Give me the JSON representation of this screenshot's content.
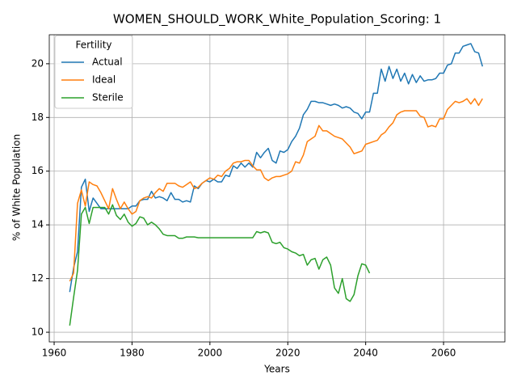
{
  "chart_data": {
    "type": "line",
    "title": "WOMEN_SHOULD_WORK_White_Population_Scoring: 1",
    "x_label": "Years",
    "y_label": "% of White Population",
    "legend_title": "Fertility",
    "legend_position": "upper left",
    "grid": true,
    "xlim": [
      1958.75,
      2075.75
    ],
    "ylim": [
      9.64,
      21.08
    ],
    "xticks": [
      1960,
      1980,
      2000,
      2020,
      2040,
      2060
    ],
    "yticks": [
      10,
      12,
      14,
      16,
      18,
      20
    ],
    "x": [
      1964,
      1965,
      1966,
      1967,
      1968,
      1969,
      1970,
      1971,
      1972,
      1973,
      1974,
      1975,
      1976,
      1977,
      1978,
      1979,
      1980,
      1981,
      1982,
      1983,
      1984,
      1985,
      1986,
      1987,
      1988,
      1989,
      1990,
      1991,
      1992,
      1993,
      1994,
      1995,
      1996,
      1997,
      1998,
      1999,
      2000,
      2001,
      2002,
      2003,
      2004,
      2005,
      2006,
      2007,
      2008,
      2009,
      2010,
      2011,
      2012,
      2013,
      2014,
      2015,
      2016,
      2017,
      2018,
      2019,
      2020,
      2021,
      2022,
      2023,
      2024,
      2025,
      2026,
      2027,
      2028,
      2029,
      2030,
      2031,
      2032,
      2033,
      2034,
      2035,
      2036,
      2037,
      2038,
      2039,
      2040,
      2041,
      2042,
      2043,
      2044,
      2045,
      2046,
      2047,
      2048,
      2049,
      2050,
      2051,
      2052,
      2053,
      2054,
      2055,
      2056,
      2057,
      2058,
      2059,
      2060,
      2061,
      2062,
      2063,
      2064,
      2065,
      2066,
      2067,
      2068,
      2069,
      2070
    ],
    "series": [
      {
        "name": "Actual",
        "color": "#1f77b4",
        "values": [
          11.5,
          12.4,
          13.0,
          15.4,
          15.7,
          14.5,
          15.0,
          14.8,
          14.6,
          14.6,
          14.6,
          14.6,
          14.6,
          14.6,
          14.6,
          14.6,
          14.7,
          14.7,
          14.9,
          14.95,
          14.95,
          15.25,
          15.0,
          15.05,
          15.0,
          14.9,
          15.2,
          14.95,
          14.95,
          14.85,
          14.9,
          14.85,
          15.45,
          15.35,
          15.55,
          15.65,
          15.6,
          15.7,
          15.6,
          15.6,
          15.85,
          15.8,
          16.2,
          16.1,
          16.3,
          16.15,
          16.3,
          16.15,
          16.7,
          16.5,
          16.7,
          16.85,
          16.4,
          16.3,
          16.75,
          16.7,
          16.8,
          17.1,
          17.3,
          17.6,
          18.1,
          18.3,
          18.6,
          18.6,
          18.55,
          18.55,
          18.5,
          18.45,
          18.5,
          18.45,
          18.35,
          18.4,
          18.35,
          18.2,
          18.15,
          17.95,
          18.2,
          18.2,
          18.9,
          18.9,
          19.8,
          19.35,
          19.9,
          19.45,
          19.8,
          19.35,
          19.65,
          19.25,
          19.6,
          19.3,
          19.55,
          19.35,
          19.4,
          19.4,
          19.45,
          19.65,
          19.65,
          19.95,
          20.0,
          20.4,
          20.4,
          20.65,
          20.7,
          20.75,
          20.45,
          20.4,
          19.9
        ]
      },
      {
        "name": "Ideal",
        "color": "#ff7f0e",
        "values": [
          11.9,
          12.2,
          14.8,
          15.3,
          14.7,
          15.6,
          15.5,
          15.45,
          15.2,
          14.9,
          14.6,
          15.35,
          14.95,
          14.6,
          14.85,
          14.6,
          14.4,
          14.5,
          14.9,
          15.0,
          15.05,
          15.0,
          15.2,
          15.35,
          15.25,
          15.55,
          15.55,
          15.55,
          15.45,
          15.4,
          15.5,
          15.6,
          15.35,
          15.4,
          15.55,
          15.65,
          15.75,
          15.7,
          15.85,
          15.8,
          16.0,
          16.1,
          16.3,
          16.35,
          16.35,
          16.4,
          16.4,
          16.2,
          16.05,
          16.05,
          15.75,
          15.65,
          15.75,
          15.8,
          15.8,
          15.85,
          15.9,
          16.0,
          16.35,
          16.3,
          16.6,
          17.1,
          17.2,
          17.3,
          17.7,
          17.5,
          17.5,
          17.4,
          17.3,
          17.25,
          17.2,
          17.05,
          16.9,
          16.65,
          16.7,
          16.75,
          17.0,
          17.05,
          17.1,
          17.15,
          17.35,
          17.45,
          17.65,
          17.8,
          18.1,
          18.2,
          18.25,
          18.25,
          18.25,
          18.25,
          18.05,
          18.0,
          17.65,
          17.7,
          17.65,
          17.95,
          17.95,
          18.3,
          18.45,
          18.6,
          18.55,
          18.6,
          18.7,
          18.5,
          18.7,
          18.45,
          18.7
        ]
      },
      {
        "name": "Sterile",
        "color": "#2ca02c",
        "values": [
          10.25,
          11.3,
          12.3,
          14.4,
          14.65,
          14.05,
          14.65,
          14.65,
          14.65,
          14.65,
          14.4,
          14.75,
          14.35,
          14.2,
          14.4,
          14.1,
          13.95,
          14.05,
          14.3,
          14.25,
          14.0,
          14.1,
          14.0,
          13.85,
          13.65,
          13.6,
          13.6,
          13.6,
          13.5,
          13.5,
          13.55,
          13.55,
          13.55,
          13.52,
          13.52,
          13.52,
          13.52,
          13.52,
          13.52,
          13.52,
          13.52,
          13.52,
          13.52,
          13.52,
          13.52,
          13.52,
          13.52,
          13.52,
          13.75,
          13.7,
          13.75,
          13.7,
          13.35,
          13.3,
          13.35,
          13.15,
          13.1,
          13.0,
          12.95,
          12.85,
          12.9,
          12.5,
          12.7,
          12.75,
          12.35,
          12.7,
          12.8,
          12.5,
          11.65,
          11.45,
          12.0,
          11.25,
          11.15,
          11.4,
          12.1,
          12.55,
          12.5,
          12.2,
          null,
          null,
          null,
          null,
          null,
          null,
          null,
          null,
          null,
          null,
          null,
          null,
          null,
          null,
          null,
          null,
          null,
          null,
          null,
          null,
          null,
          null,
          null,
          null,
          null,
          null,
          null,
          null,
          null
        ]
      }
    ]
  }
}
